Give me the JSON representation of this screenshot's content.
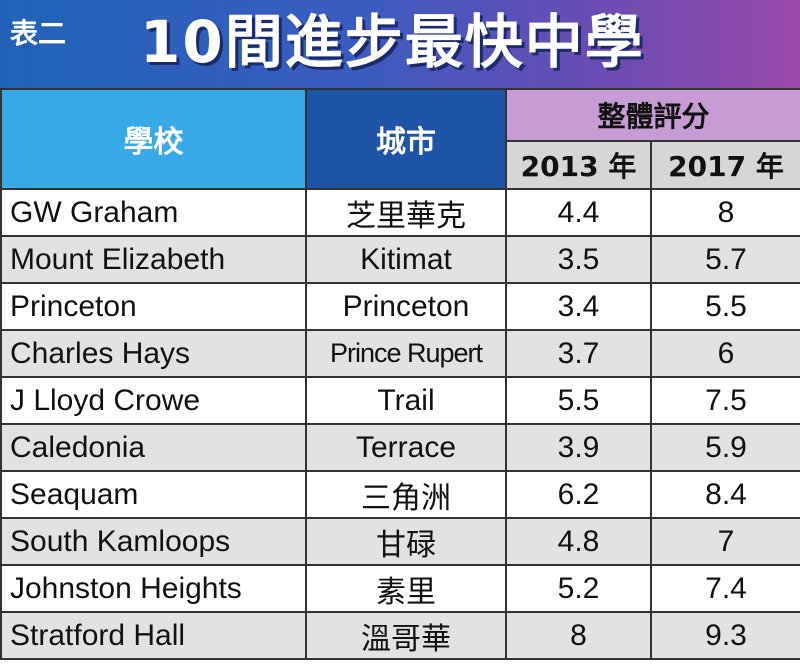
{
  "header": {
    "tag": "表二",
    "title": "10間進步最快中學"
  },
  "table": {
    "columns": {
      "school": "學校",
      "city": "城市",
      "group": "整體評分",
      "y2013": "2013 年",
      "y2017": "2017 年"
    },
    "rows": [
      {
        "school": "GW Graham",
        "city": "芝里華克",
        "s2013": "4.4",
        "s2017": "8"
      },
      {
        "school": "Mount Elizabeth",
        "city": "Kitimat",
        "s2013": "3.5",
        "s2017": "5.7"
      },
      {
        "school": "Princeton",
        "city": "Princeton",
        "s2013": "3.4",
        "s2017": "5.5"
      },
      {
        "school": "Charles Hays",
        "city": "Prince Rupert",
        "s2013": "3.7",
        "s2017": "6"
      },
      {
        "school": "J Lloyd Crowe",
        "city": "Trail",
        "s2013": "5.5",
        "s2017": "7.5"
      },
      {
        "school": "Caledonia",
        "city": "Terrace",
        "s2013": "3.9",
        "s2017": "5.9"
      },
      {
        "school": "Seaquam",
        "city": "三角洲",
        "s2013": "6.2",
        "s2017": "8.4"
      },
      {
        "school": "South Kamloops",
        "city": "甘碌",
        "s2013": "4.8",
        "s2017": "7"
      },
      {
        "school": "Johnston Heights",
        "city": "素里",
        "s2013": "5.2",
        "s2017": "7.4"
      },
      {
        "school": "Stratford Hall",
        "city": "溫哥華",
        "s2013": "8",
        "s2017": "9.3"
      }
    ]
  },
  "colors": {
    "banner_left": "#1f63b8",
    "banner_right": "#9a4aa8",
    "school_header": "#36a9e6",
    "city_header": "#1e54a6",
    "score_header": "#c99bd6",
    "year_header": "#d6d6d6",
    "alt_row": "#e2e2e2"
  }
}
